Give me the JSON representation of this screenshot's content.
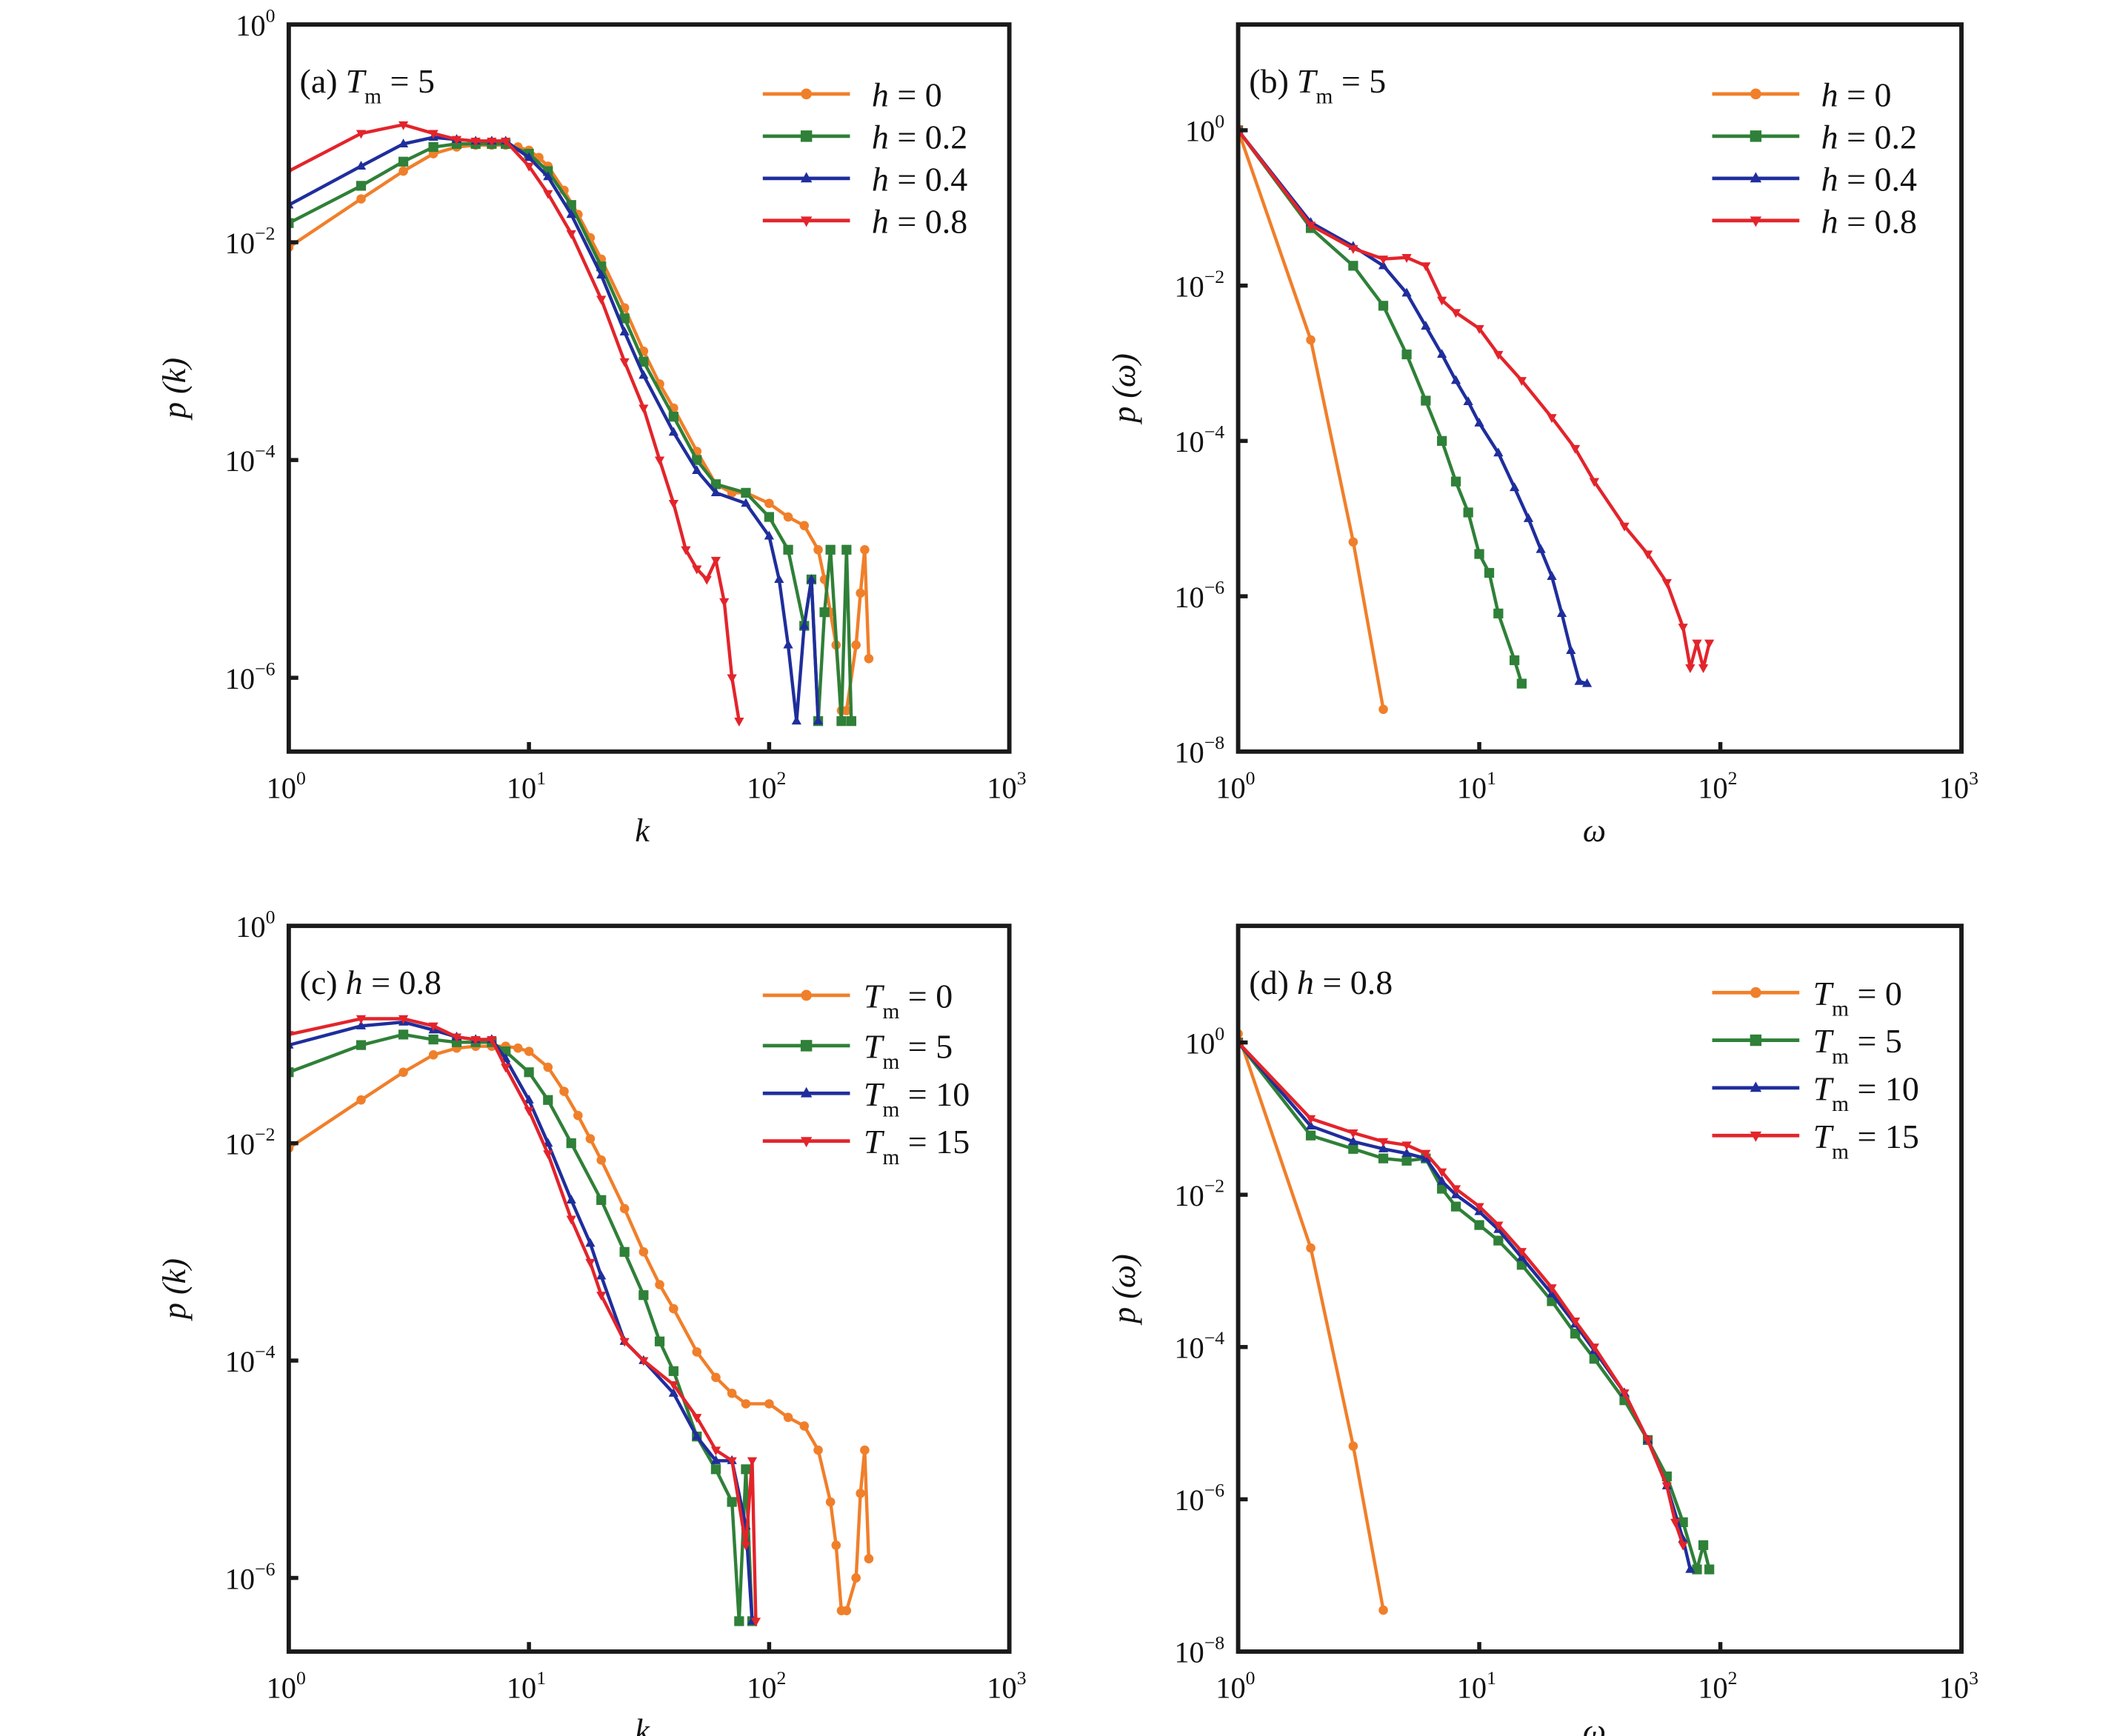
{
  "chart_data": [
    {
      "type": "line",
      "panel_label": "(a)",
      "title_var": "T",
      "title_sub": "m",
      "title_rest": " = 5",
      "xlabel": "k",
      "ylabel": "p (k)",
      "xscale": "log",
      "yscale": "log",
      "xlim": [
        1,
        1000
      ],
      "ylim": [
        2.1e-07,
        1
      ],
      "tick_base": "10",
      "x_tick_exponents": [
        "0",
        "1",
        "2",
        "3"
      ],
      "y_tick_exponents": [
        "0",
        "-2",
        "-4",
        "-6"
      ],
      "legend_position": "top-right",
      "series": [
        {
          "name_var": "h",
          "name_sub": "",
          "name_rest": " = 0",
          "color": "#F07F2A",
          "marker": "circle",
          "x": [
            1,
            2,
            3,
            4,
            5,
            6,
            7,
            8,
            9,
            10,
            11,
            12,
            14,
            16,
            18,
            20,
            25,
            30,
            35,
            40,
            50,
            60,
            70,
            80,
            100,
            120,
            140,
            160,
            170,
            180,
            190,
            200,
            210,
            230,
            240,
            250,
            260
          ],
          "y": [
            0.009,
            0.025,
            0.045,
            0.065,
            0.075,
            0.078,
            0.078,
            0.078,
            0.075,
            0.07,
            0.06,
            0.05,
            0.03,
            0.018,
            0.011,
            0.007,
            0.0025,
            0.001,
            0.0005,
            0.0003,
            0.00012,
            6e-05,
            5e-05,
            5e-05,
            4e-05,
            3e-05,
            2.5e-05,
            1.5e-05,
            8e-06,
            4e-06,
            2e-06,
            5e-07,
            5e-07,
            2e-06,
            6e-06,
            1.5e-05,
            1.5e-06
          ]
        },
        {
          "name_var": "h",
          "name_sub": "",
          "name_rest": " = 0.2",
          "color": "#2F8038",
          "marker": "square",
          "x": [
            1,
            2,
            3,
            4,
            5,
            6,
            7,
            8,
            10,
            12,
            15,
            20,
            25,
            30,
            40,
            50,
            60,
            80,
            100,
            120,
            140,
            150,
            160,
            170,
            180,
            200,
            210,
            220
          ],
          "y": [
            0.015,
            0.033,
            0.055,
            0.075,
            0.08,
            0.08,
            0.08,
            0.08,
            0.065,
            0.045,
            0.022,
            0.006,
            0.002,
            0.0008,
            0.00025,
            0.0001,
            6e-05,
            5e-05,
            3e-05,
            1.5e-05,
            3e-06,
            8e-06,
            4e-07,
            4e-06,
            1.5e-05,
            4e-07,
            1.5e-05,
            4e-07
          ]
        },
        {
          "name_var": "h",
          "name_sub": "",
          "name_rest": " = 0.4",
          "color": "#1F2E9C",
          "marker": "triangle-up",
          "x": [
            1,
            2,
            3,
            4,
            5,
            6,
            7,
            8,
            10,
            12,
            15,
            20,
            25,
            30,
            40,
            50,
            60,
            80,
            100,
            110,
            120,
            130,
            140,
            150,
            160
          ],
          "y": [
            0.022,
            0.05,
            0.08,
            0.092,
            0.088,
            0.085,
            0.085,
            0.085,
            0.06,
            0.04,
            0.018,
            0.005,
            0.0015,
            0.0006,
            0.00018,
            8e-05,
            5e-05,
            4e-05,
            2e-05,
            8e-06,
            2e-06,
            4e-07,
            3e-06,
            8e-06,
            4e-07
          ]
        },
        {
          "name_var": "h",
          "name_sub": "",
          "name_rest": " = 0.8",
          "color": "#E3242B",
          "marker": "triangle-down",
          "x": [
            1,
            2,
            3,
            4,
            5,
            6,
            7,
            8,
            10,
            12,
            15,
            20,
            25,
            30,
            35,
            40,
            45,
            50,
            55,
            60,
            65,
            70,
            75
          ],
          "y": [
            0.045,
            0.1,
            0.12,
            0.1,
            0.088,
            0.085,
            0.085,
            0.085,
            0.05,
            0.028,
            0.012,
            0.003,
            0.0008,
            0.0003,
            0.0001,
            4e-05,
            1.5e-05,
            1e-05,
            8e-06,
            1.2e-05,
            5e-06,
            1e-06,
            4e-07
          ]
        }
      ]
    },
    {
      "type": "line",
      "panel_label": "(b)",
      "title_var": "T",
      "title_sub": "m",
      "title_rest": " = 5",
      "xlabel": "ω",
      "ylabel": "p (ω)",
      "xscale": "log",
      "yscale": "log",
      "xlim": [
        1,
        1000
      ],
      "ylim": [
        1e-08,
        23
      ],
      "tick_base": "10",
      "x_tick_exponents": [
        "0",
        "1",
        "2",
        "3"
      ],
      "y_tick_exponents": [
        "0",
        "-2",
        "-4",
        "-6",
        "-8"
      ],
      "legend_position": "top-right",
      "series": [
        {
          "name_var": "h",
          "name_sub": "",
          "name_rest": " = 0",
          "color": "#F07F2A",
          "marker": "circle",
          "x": [
            1,
            2,
            3,
            4
          ],
          "y": [
            1,
            0.002,
            5e-06,
            3.5e-08
          ]
        },
        {
          "name_var": "h",
          "name_sub": "",
          "name_rest": " = 0.2",
          "color": "#2F8038",
          "marker": "square",
          "x": [
            1,
            2,
            3,
            4,
            5,
            6,
            7,
            8,
            9,
            10,
            11,
            12,
            14,
            15
          ],
          "y": [
            1,
            0.055,
            0.018,
            0.0055,
            0.0013,
            0.00033,
            0.0001,
            3e-05,
            1.2e-05,
            3.5e-06,
            2e-06,
            6e-07,
            1.5e-07,
            7.5e-08
          ]
        },
        {
          "name_var": "h",
          "name_sub": "",
          "name_rest": " = 0.4",
          "color": "#1F2E9C",
          "marker": "triangle-up",
          "x": [
            1,
            2,
            3,
            4,
            5,
            6,
            7,
            8,
            9,
            10,
            12,
            14,
            16,
            18,
            20,
            22,
            24,
            26,
            28
          ],
          "y": [
            1,
            0.065,
            0.032,
            0.018,
            0.008,
            0.003,
            0.0013,
            0.0006,
            0.00032,
            0.00017,
            7e-05,
            2.5e-05,
            1e-05,
            4e-06,
            1.8e-06,
            6e-07,
            2e-07,
            8e-08,
            7.5e-08
          ]
        },
        {
          "name_var": "h",
          "name_sub": "",
          "name_rest": " = 0.8",
          "color": "#E3242B",
          "marker": "triangle-down",
          "x": [
            1,
            2,
            3,
            4,
            5,
            6,
            7,
            8,
            10,
            12,
            15,
            20,
            25,
            30,
            40,
            50,
            60,
            70,
            75,
            80,
            85,
            90
          ],
          "y": [
            1,
            0.06,
            0.03,
            0.022,
            0.023,
            0.018,
            0.0065,
            0.0045,
            0.0028,
            0.0013,
            0.0006,
            0.0002,
            8e-05,
            3e-05,
            8e-06,
            3.5e-06,
            1.5e-06,
            4e-07,
            1.2e-07,
            2.5e-07,
            1.2e-07,
            2.5e-07
          ]
        }
      ]
    },
    {
      "type": "line",
      "panel_label": "(c)",
      "title_var": "h",
      "title_sub": "",
      "title_rest": " = 0.8",
      "xlabel": "k",
      "ylabel": "p (k)",
      "xscale": "log",
      "yscale": "log",
      "xlim": [
        1,
        1000
      ],
      "ylim": [
        2.1e-07,
        1
      ],
      "tick_base": "10",
      "x_tick_exponents": [
        "0",
        "1",
        "2",
        "3"
      ],
      "y_tick_exponents": [
        "0",
        "-2",
        "-4",
        "-6"
      ],
      "legend_position": "top-right",
      "series": [
        {
          "name_var": "T",
          "name_sub": "m",
          "name_rest": " = 0",
          "color": "#F07F2A",
          "marker": "circle",
          "x": [
            1,
            2,
            3,
            4,
            5,
            6,
            7,
            8,
            9,
            10,
            12,
            14,
            16,
            18,
            20,
            25,
            30,
            35,
            40,
            50,
            60,
            70,
            80,
            100,
            120,
            140,
            160,
            180,
            190,
            200,
            210,
            230,
            240,
            250,
            260
          ],
          "y": [
            0.009,
            0.025,
            0.045,
            0.065,
            0.075,
            0.078,
            0.078,
            0.078,
            0.075,
            0.07,
            0.05,
            0.03,
            0.018,
            0.011,
            0.007,
            0.0025,
            0.001,
            0.0005,
            0.0003,
            0.00012,
            7e-05,
            5e-05,
            4e-05,
            4e-05,
            3e-05,
            2.5e-05,
            1.5e-05,
            5e-06,
            2e-06,
            5e-07,
            5e-07,
            1e-06,
            6e-06,
            1.5e-05,
            1.5e-06
          ]
        },
        {
          "name_var": "T",
          "name_sub": "m",
          "name_rest": " = 5",
          "color": "#2F8038",
          "marker": "square",
          "x": [
            1,
            2,
            3,
            4,
            5,
            6,
            7,
            8,
            10,
            12,
            15,
            20,
            25,
            30,
            35,
            40,
            50,
            60,
            70,
            75,
            80,
            85
          ],
          "y": [
            0.045,
            0.08,
            0.1,
            0.09,
            0.085,
            0.085,
            0.085,
            0.07,
            0.045,
            0.025,
            0.01,
            0.003,
            0.001,
            0.0004,
            0.00015,
            8e-05,
            2e-05,
            1e-05,
            5e-06,
            4e-07,
            1e-05,
            4e-07
          ]
        },
        {
          "name_var": "T",
          "name_sub": "m",
          "name_rest": " = 10",
          "color": "#1F2E9C",
          "marker": "triangle-up",
          "x": [
            1,
            2,
            3,
            4,
            5,
            6,
            7,
            8,
            10,
            12,
            15,
            18,
            20,
            25,
            30,
            40,
            50,
            60,
            70,
            80,
            85
          ],
          "y": [
            0.08,
            0.12,
            0.13,
            0.11,
            0.095,
            0.09,
            0.09,
            0.06,
            0.025,
            0.01,
            0.003,
            0.0012,
            0.0006,
            0.00015,
            0.0001,
            5e-05,
            2e-05,
            1.2e-05,
            1.2e-05,
            3e-06,
            4e-07
          ]
        },
        {
          "name_var": "T",
          "name_sub": "m",
          "name_rest": " = 15",
          "color": "#E3242B",
          "marker": "triangle-down",
          "x": [
            1,
            2,
            3,
            4,
            5,
            6,
            7,
            8,
            10,
            12,
            15,
            18,
            20,
            25,
            30,
            40,
            50,
            60,
            70,
            80,
            85,
            88
          ],
          "y": [
            0.1,
            0.14,
            0.14,
            0.12,
            0.095,
            0.09,
            0.09,
            0.05,
            0.02,
            0.008,
            0.002,
            0.0008,
            0.0004,
            0.00015,
            0.0001,
            6e-05,
            3e-05,
            1.5e-05,
            1.2e-05,
            2e-06,
            1.2e-05,
            4e-07
          ]
        }
      ]
    },
    {
      "type": "line",
      "panel_label": "(d)",
      "title_var": "h",
      "title_sub": "",
      "title_rest": " = 0.8",
      "xlabel": "ω",
      "ylabel": "p (ω)",
      "xscale": "log",
      "yscale": "log",
      "xlim": [
        1,
        1000
      ],
      "ylim": [
        1e-08,
        34
      ],
      "tick_base": "10",
      "x_tick_exponents": [
        "0",
        "1",
        "2",
        "3"
      ],
      "y_tick_exponents": [
        "0",
        "-2",
        "-4",
        "-6",
        "-8"
      ],
      "legend_position": "top-right",
      "series": [
        {
          "name_var": "T",
          "name_sub": "m",
          "name_rest": " = 0",
          "color": "#F07F2A",
          "marker": "circle",
          "x": [
            1,
            2,
            3,
            4
          ],
          "y": [
            1.3,
            0.002,
            5e-06,
            3.5e-08
          ]
        },
        {
          "name_var": "T",
          "name_sub": "m",
          "name_rest": " = 5",
          "color": "#2F8038",
          "marker": "square",
          "x": [
            1,
            2,
            3,
            4,
            5,
            6,
            7,
            8,
            10,
            12,
            15,
            20,
            25,
            30,
            40,
            50,
            60,
            70,
            80,
            85,
            90
          ],
          "y": [
            1,
            0.06,
            0.04,
            0.03,
            0.028,
            0.03,
            0.012,
            0.007,
            0.004,
            0.0025,
            0.0012,
            0.0004,
            0.00015,
            7e-05,
            2e-05,
            6e-06,
            2e-06,
            5e-07,
            1.2e-07,
            2.5e-07,
            1.2e-07
          ]
        },
        {
          "name_var": "T",
          "name_sub": "m",
          "name_rest": " = 10",
          "color": "#1F2E9C",
          "marker": "triangle-up",
          "x": [
            1,
            2,
            3,
            4,
            5,
            6,
            7,
            8,
            10,
            12,
            15,
            20,
            25,
            30,
            40,
            50,
            60,
            70,
            75
          ],
          "y": [
            1,
            0.08,
            0.05,
            0.04,
            0.035,
            0.03,
            0.015,
            0.01,
            0.006,
            0.0035,
            0.0015,
            0.0005,
            0.0002,
            9e-05,
            2.5e-05,
            6e-06,
            1.5e-06,
            3e-07,
            1.2e-07
          ]
        },
        {
          "name_var": "T",
          "name_sub": "m",
          "name_rest": " = 15",
          "color": "#E3242B",
          "marker": "triangle-down",
          "x": [
            1,
            2,
            3,
            4,
            5,
            6,
            7,
            8,
            10,
            12,
            15,
            20,
            25,
            30,
            40,
            50,
            60,
            65,
            70
          ],
          "y": [
            1,
            0.1,
            0.065,
            0.05,
            0.045,
            0.035,
            0.02,
            0.012,
            0.007,
            0.004,
            0.0018,
            0.0006,
            0.00022,
            0.0001,
            2.5e-05,
            6e-06,
            1.5e-06,
            5e-07,
            2.5e-07
          ]
        }
      ]
    }
  ]
}
